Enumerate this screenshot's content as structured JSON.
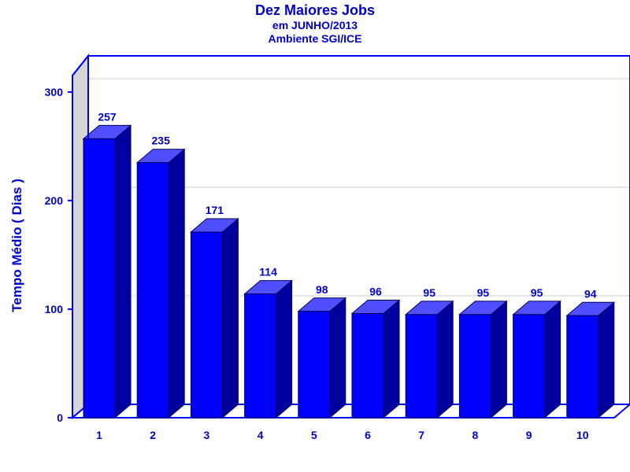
{
  "chart_data": {
    "type": "bar",
    "title": "Dez Maiores Jobs",
    "subtitle_lines": [
      "em JUNHO/2013",
      "Ambiente SGI/ICE"
    ],
    "xlabel": "",
    "ylabel": "Tempo Médio ( Dias )",
    "categories": [
      "1",
      "2",
      "3",
      "4",
      "5",
      "6",
      "7",
      "8",
      "9",
      "10"
    ],
    "values": [
      257,
      235,
      171,
      114,
      98,
      96,
      95,
      95,
      95,
      94
    ],
    "data_labels": [
      "257",
      "235",
      "171",
      "114",
      "98",
      "96",
      "95",
      "95",
      "95",
      "94"
    ],
    "ylim": [
      0,
      300
    ],
    "yticks": [
      0,
      100,
      200,
      300
    ],
    "ytick_labels": [
      "0",
      "100",
      "200",
      "300"
    ],
    "grid": true,
    "style": "3d",
    "colors": {
      "text": "#0000cc",
      "bar_front": "#0000ff",
      "bar_top": "#4f4fff",
      "bar_side": "#00009e",
      "frame": "#0000ff",
      "wall": "#d6d6d6",
      "grid": "#cccccc"
    }
  }
}
